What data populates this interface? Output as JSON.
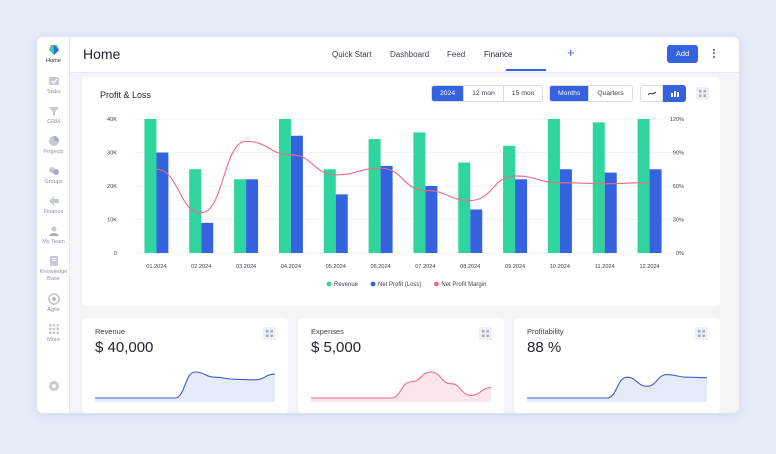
{
  "sidebar": {
    "items": [
      {
        "label": "Home",
        "icon": "home-icon",
        "active": true
      },
      {
        "label": "Tasks",
        "icon": "tasks-icon"
      },
      {
        "label": "CRM",
        "icon": "crm-icon"
      },
      {
        "label": "Projects",
        "icon": "projects-icon"
      },
      {
        "label": "Groups",
        "icon": "groups-icon"
      },
      {
        "label": "Finance",
        "icon": "finance-icon"
      },
      {
        "label": "My Team",
        "icon": "team-icon"
      },
      {
        "label": "Knowledge Base",
        "icon": "knowledge-base-icon"
      },
      {
        "label": "Agile",
        "icon": "agile-icon"
      },
      {
        "label": "More",
        "icon": "more-grid-icon"
      }
    ]
  },
  "header": {
    "title": "Home",
    "tabs": [
      {
        "label": "Quick Start"
      },
      {
        "label": "Dashboard"
      },
      {
        "label": "Feed"
      },
      {
        "label": "Finance",
        "active": true
      }
    ],
    "add_tab": "+",
    "add_button": "Add"
  },
  "pl_card": {
    "title": "Profit & Loss",
    "year_options": [
      "2024",
      "12 mon",
      "15 mon"
    ],
    "year_selected": "2024",
    "period_options": [
      "Months",
      "Quarters"
    ],
    "period_selected": "Months",
    "view_icons": [
      "line-chart-icon",
      "bar-chart-icon"
    ],
    "accent": "#3563e0"
  },
  "chart_data": {
    "type": "bar",
    "categories": [
      "01.2024",
      "02.2024",
      "03.2024",
      "04.2024",
      "05.2024",
      "06.2024",
      "07.2024",
      "08.2024",
      "09.2024",
      "10.2024",
      "11.2024",
      "12.2024"
    ],
    "series": [
      {
        "name": "Revenue",
        "kind": "bar",
        "axis": "left",
        "color": "#2fd49e",
        "values": [
          40000,
          25000,
          22000,
          40000,
          25000,
          34000,
          36000,
          27000,
          32000,
          40000,
          39000,
          40000
        ]
      },
      {
        "name": "Net Profit (Loss)",
        "kind": "bar",
        "axis": "left",
        "color": "#3563e0",
        "values": [
          30000,
          9000,
          22000,
          35000,
          17500,
          26000,
          20000,
          13000,
          22000,
          25000,
          24000,
          25000
        ]
      },
      {
        "name": "Net Profit Margin",
        "kind": "line",
        "axis": "right",
        "color": "#ef6b86",
        "values": [
          75,
          36,
          100,
          88,
          70,
          76,
          56,
          47,
          69,
          63,
          62,
          63
        ]
      }
    ],
    "left_ticks": [
      "0",
      "10K",
      "20K",
      "30K",
      "40K"
    ],
    "right_ticks": [
      "0%",
      "30%",
      "60%",
      "90%",
      "120%"
    ],
    "ylim": [
      0,
      40000
    ],
    "y2lim": [
      0,
      120
    ],
    "legend_position": "bottom",
    "grid": true
  },
  "stats": [
    {
      "label": "Revenue",
      "value": "$ 40,000",
      "color": "#3f5fc4",
      "fill": "#e6ebfa",
      "spark": [
        0,
        0,
        0,
        0,
        0,
        1,
        0.8,
        0.72,
        0.7,
        0.92
      ]
    },
    {
      "label": "Expenses",
      "value": "$ 5,000",
      "color": "#ef6b86",
      "fill": "#fce6ea",
      "spark": [
        0,
        0,
        0,
        0,
        0,
        0.62,
        1,
        0.55,
        0.1,
        0.4
      ]
    },
    {
      "label": "Profitability",
      "value": "88 %",
      "color": "#3f5fc4",
      "fill": "#e6ebfa",
      "spark": [
        0,
        0,
        0,
        0,
        0,
        0.8,
        0.45,
        0.9,
        0.8,
        0.78
      ]
    }
  ]
}
